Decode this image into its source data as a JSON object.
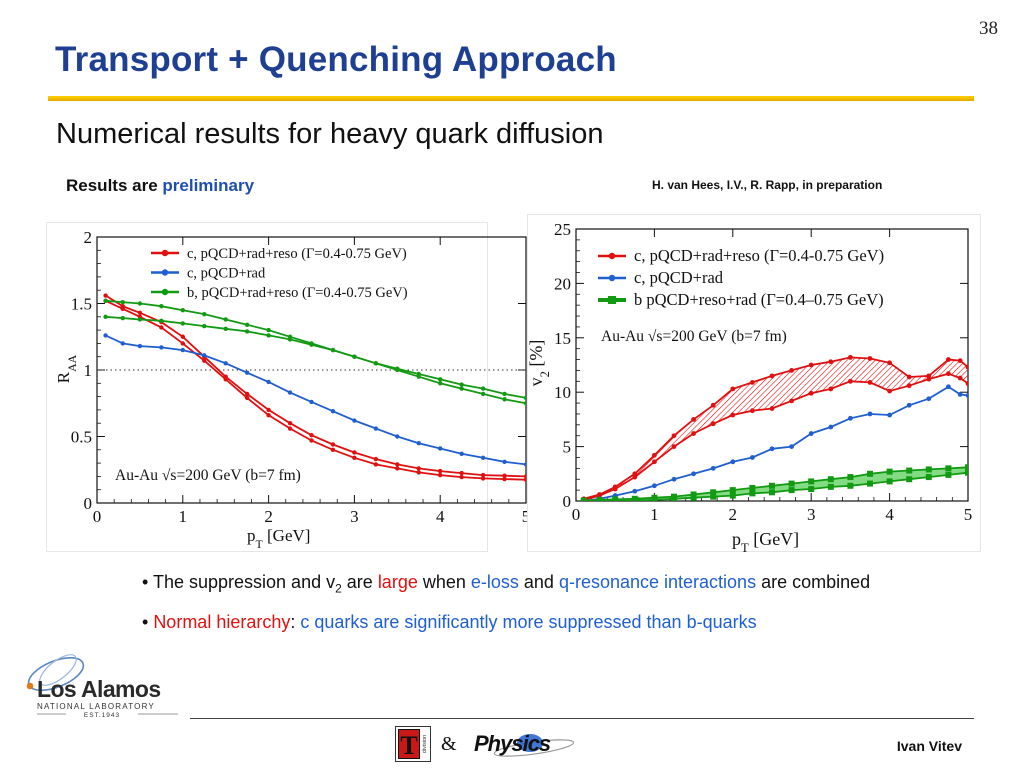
{
  "page": {
    "number": "38",
    "title": "Transport + Quenching Approach",
    "subtitle": "Numerical results for heavy quark diffusion",
    "results_note": {
      "prefix": "Results are",
      "highlight": "preliminary"
    },
    "citation": "H. van Hees, I.V., R. Rapp, in preparation",
    "author": "Ivan Vitev",
    "ampersand": "&",
    "logo": {
      "icon": "los-alamos-orbit-icon",
      "name": "Los Alamos",
      "line2": "NATIONAL LABORATORY",
      "line3": "EST.1943"
    },
    "footer_logos": {
      "t_division": {
        "icon": "t-division-icon",
        "letter": "T",
        "side_text": "division"
      },
      "physics": {
        "icon": "physics-logo-icon",
        "text": "Physics"
      }
    },
    "colors": {
      "title": "#1f3f93",
      "rule": "#f0bf00",
      "red": "#e01010",
      "blue": "#1f5fd0",
      "green": "#129a12"
    }
  },
  "bullets": [
    [
      {
        "t": "The suppression and v"
      },
      {
        "t": "2",
        "style": "sub"
      },
      {
        "t": " are "
      },
      {
        "t": "large",
        "style": "red"
      },
      {
        "t": " when "
      },
      {
        "t": "e-loss",
        "style": "blue"
      },
      {
        "t": " and "
      },
      {
        "t": "q-resonance interactions",
        "style": "blue"
      },
      {
        "t": " are combined"
      }
    ],
    [
      {
        "t": "Normal hierarchy",
        "style": "red"
      },
      {
        "t": ": "
      },
      {
        "t": "c quarks are significantly more suppressed than b-quarks",
        "style": "blue"
      }
    ]
  ],
  "chart_data": [
    {
      "type": "line",
      "xlabel": "p_T [GeV]",
      "ylabel": "R_AA",
      "xlim": [
        0,
        5
      ],
      "ylim": [
        0,
        2
      ],
      "xticks": [
        "0",
        "1",
        "2",
        "3",
        "4",
        "5"
      ],
      "yticks": [
        "0",
        "0.5",
        "1",
        "1.5",
        "2"
      ],
      "reference_line": 1,
      "legend_position": "top-right",
      "annotation": "Au-Au √s=200 GeV (b=7 fm)",
      "band_style": "paired-lines",
      "series": [
        {
          "name": "c, pQCD+rad+reso (Γ=0.4-0.75 GeV)",
          "color": "#e01010",
          "x": [
            0.1,
            0.3,
            0.5,
            0.75,
            1.0,
            1.25,
            1.5,
            1.75,
            2.0,
            2.25,
            2.5,
            2.75,
            3.0,
            3.25,
            3.5,
            3.75,
            4.0,
            4.25,
            4.5,
            4.75,
            5.0
          ],
          "y1": [
            1.52,
            1.46,
            1.4,
            1.32,
            1.2,
            1.07,
            0.93,
            0.79,
            0.66,
            0.56,
            0.47,
            0.4,
            0.34,
            0.29,
            0.26,
            0.23,
            0.21,
            0.195,
            0.185,
            0.18,
            0.175
          ],
          "y2": [
            1.56,
            1.48,
            1.43,
            1.36,
            1.25,
            1.1,
            0.95,
            0.82,
            0.7,
            0.6,
            0.51,
            0.44,
            0.38,
            0.33,
            0.29,
            0.26,
            0.24,
            0.225,
            0.21,
            0.205,
            0.2
          ]
        },
        {
          "name": "c, pQCD+rad",
          "color": "#1f5fd0",
          "x": [
            0.1,
            0.3,
            0.5,
            0.75,
            1.0,
            1.25,
            1.5,
            1.75,
            2.0,
            2.25,
            2.5,
            2.75,
            3.0,
            3.25,
            3.5,
            3.75,
            4.0,
            4.25,
            4.5,
            4.75,
            5.0
          ],
          "y": [
            1.26,
            1.2,
            1.18,
            1.17,
            1.15,
            1.11,
            1.05,
            0.98,
            0.91,
            0.83,
            0.76,
            0.69,
            0.62,
            0.56,
            0.5,
            0.45,
            0.41,
            0.37,
            0.34,
            0.31,
            0.29
          ]
        },
        {
          "name": "b, pQCD+rad+reso (Γ=0.4-0.75 GeV)",
          "color": "#129a12",
          "x": [
            0.1,
            0.3,
            0.5,
            0.75,
            1.0,
            1.25,
            1.5,
            1.75,
            2.0,
            2.25,
            2.5,
            2.75,
            3.0,
            3.25,
            3.5,
            3.75,
            4.0,
            4.25,
            4.5,
            4.75,
            5.0
          ],
          "y1": [
            1.4,
            1.39,
            1.38,
            1.37,
            1.35,
            1.33,
            1.31,
            1.29,
            1.26,
            1.23,
            1.19,
            1.15,
            1.1,
            1.05,
            1.0,
            0.95,
            0.9,
            0.86,
            0.82,
            0.78,
            0.75
          ],
          "y2": [
            1.52,
            1.51,
            1.5,
            1.48,
            1.45,
            1.42,
            1.38,
            1.34,
            1.3,
            1.25,
            1.2,
            1.15,
            1.1,
            1.05,
            1.01,
            0.97,
            0.93,
            0.89,
            0.86,
            0.82,
            0.79
          ]
        }
      ]
    },
    {
      "type": "line",
      "xlabel": "p_T [GeV]",
      "ylabel": "v_2 [%]",
      "xlim": [
        0,
        5
      ],
      "ylim": [
        0,
        25
      ],
      "xticks": [
        "0",
        "1",
        "2",
        "3",
        "4",
        "5"
      ],
      "yticks": [
        "0",
        "5",
        "10",
        "15",
        "20",
        "25"
      ],
      "legend_position": "top-right",
      "annotation": "Au-Au √s=200 GeV (b=7 fm)",
      "band_style": "hatched",
      "series": [
        {
          "name": "c, pQCD+rad+reso (Γ=0.4-0.75 GeV)",
          "color": "#e01010",
          "x": [
            0.1,
            0.3,
            0.5,
            0.75,
            1.0,
            1.25,
            1.5,
            1.75,
            2.0,
            2.25,
            2.5,
            2.75,
            3.0,
            3.25,
            3.5,
            3.75,
            4.0,
            4.25,
            4.5,
            4.75,
            4.9,
            5.0
          ],
          "y1": [
            0.1,
            0.5,
            1.1,
            2.2,
            3.6,
            5.0,
            6.2,
            7.1,
            7.9,
            8.3,
            8.5,
            9.2,
            9.9,
            10.3,
            11.0,
            10.9,
            10.1,
            10.6,
            11.2,
            11.7,
            11.3,
            10.8
          ],
          "y2": [
            0.2,
            0.6,
            1.3,
            2.5,
            4.2,
            6.0,
            7.5,
            8.8,
            10.3,
            10.9,
            11.5,
            12.0,
            12.5,
            12.8,
            13.2,
            13.1,
            12.7,
            11.4,
            11.5,
            13.0,
            12.9,
            12.3
          ]
        },
        {
          "name": "c, pQCD+rad",
          "color": "#1f5fd0",
          "x": [
            0.1,
            0.3,
            0.5,
            0.75,
            1.0,
            1.25,
            1.5,
            1.75,
            2.0,
            2.25,
            2.5,
            2.75,
            3.0,
            3.25,
            3.5,
            3.75,
            4.0,
            4.25,
            4.5,
            4.75,
            4.9,
            5.0
          ],
          "y": [
            0.0,
            0.2,
            0.5,
            0.9,
            1.4,
            2.0,
            2.5,
            3.0,
            3.6,
            4.0,
            4.8,
            5.0,
            6.2,
            6.8,
            7.6,
            8.0,
            7.9,
            8.8,
            9.4,
            10.5,
            9.8,
            9.7
          ]
        },
        {
          "name": "b pQCD+reso+rad (Γ=0.4–0.75 GeV)",
          "color": "#129a12",
          "x": [
            0.1,
            0.3,
            0.5,
            0.75,
            1.0,
            1.25,
            1.5,
            1.75,
            2.0,
            2.25,
            2.5,
            2.75,
            3.0,
            3.25,
            3.5,
            3.75,
            4.0,
            4.25,
            4.5,
            4.75,
            5.0
          ],
          "y1": [
            0.0,
            0.0,
            0.0,
            0.05,
            0.1,
            0.2,
            0.3,
            0.4,
            0.5,
            0.7,
            0.8,
            1.0,
            1.1,
            1.3,
            1.4,
            1.6,
            1.8,
            2.0,
            2.2,
            2.4,
            2.6
          ],
          "y2": [
            0.05,
            0.1,
            0.15,
            0.2,
            0.3,
            0.4,
            0.6,
            0.8,
            1.0,
            1.2,
            1.4,
            1.6,
            1.8,
            2.0,
            2.2,
            2.5,
            2.7,
            2.8,
            2.9,
            3.0,
            3.1
          ]
        }
      ]
    }
  ]
}
